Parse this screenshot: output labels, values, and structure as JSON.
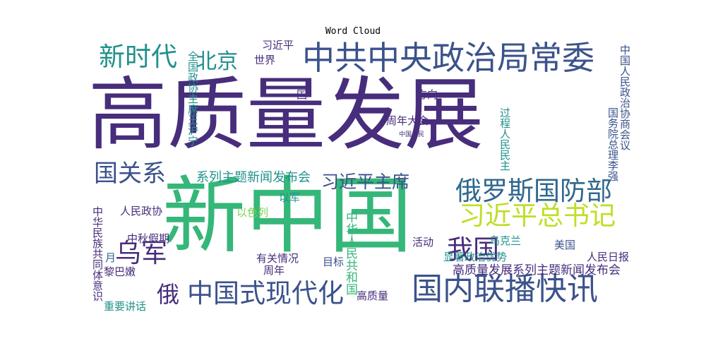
{
  "title": "Word Cloud",
  "colors": {
    "purple": "#440154",
    "indigo": "#3b528b",
    "blue": "#30678d",
    "teal": "#21918c",
    "green": "#35b779",
    "lime": "#7ad151",
    "yellow": "#bddf26"
  },
  "words": [
    "高质量发展",
    "新中国",
    "中共中央政治局常委",
    "新时代",
    "北京",
    "国内联播快讯",
    "中国式现代化",
    "俄罗斯国防部",
    "习近平总书记",
    "国关系",
    "乌军",
    "我国",
    "习近平主席",
    "系列主题新闻发布会",
    "高质量发展系列主题新闻发布会",
    "中国人民政治协商会议",
    "全国政协主席王沪宁",
    "中华民族共同体意识",
    "中华人民共和国",
    "过程人民民主",
    "国务院总理李强",
    "俄",
    "人民政协",
    "中秋假期",
    "黎巴嫩",
    "重要讲话",
    "周年大会",
    "显著政治优势",
    "乌克兰",
    "美国",
    "人民日报",
    "活动",
    "以色列",
    "有关情况",
    "目标",
    "周年",
    "高质量",
    "方向",
    "世界",
    "习近平",
    "以军",
    "月",
    "国",
    "中国人民"
  ]
}
